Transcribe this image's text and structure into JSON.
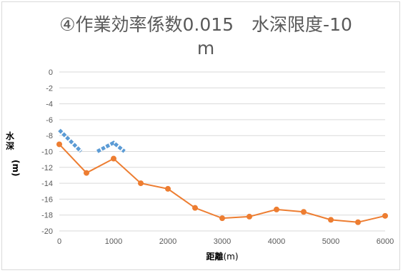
{
  "chart_data": {
    "type": "line",
    "title_line1": "④作業効率係数0.015　水深限度-10",
    "title_line2": "m",
    "xlabel": "距離",
    "xlabel_unit": "(m)",
    "ylabel_chars": [
      "水",
      "深"
    ],
    "ylabel_unit": "(m)",
    "xlim": [
      0,
      6000
    ],
    "ylim": [
      -20,
      0
    ],
    "x_ticks": [
      0,
      1000,
      2000,
      3000,
      4000,
      5000,
      6000
    ],
    "y_ticks": [
      0,
      -2,
      -4,
      -6,
      -8,
      -10,
      -12,
      -14,
      -16,
      -18,
      -20
    ],
    "grid": "horizontal",
    "legend": "none",
    "series": [
      {
        "color": "#ed7d31",
        "style": "line-with-circle-markers",
        "points": [
          [
            0,
            -9.1
          ],
          [
            500,
            -12.7
          ],
          [
            1000,
            -10.9
          ],
          [
            1500,
            -14.0
          ],
          [
            2000,
            -14.7
          ],
          [
            2500,
            -17.1
          ],
          [
            3000,
            -18.4
          ],
          [
            3500,
            -18.2
          ],
          [
            4000,
            -17.3
          ],
          [
            4500,
            -17.6
          ],
          [
            5000,
            -18.6
          ],
          [
            5500,
            -18.9
          ],
          [
            6000,
            -18.1
          ]
        ]
      },
      {
        "color": "#5b9bd5",
        "style": "dashed-thick",
        "segments": [
          [
            [
              0,
              -7.3
            ],
            [
              400,
              -10.0
            ]
          ],
          [
            [
              700,
              -10.0
            ],
            [
              1000,
              -8.9
            ],
            [
              1200,
              -10.0
            ]
          ]
        ]
      }
    ]
  }
}
